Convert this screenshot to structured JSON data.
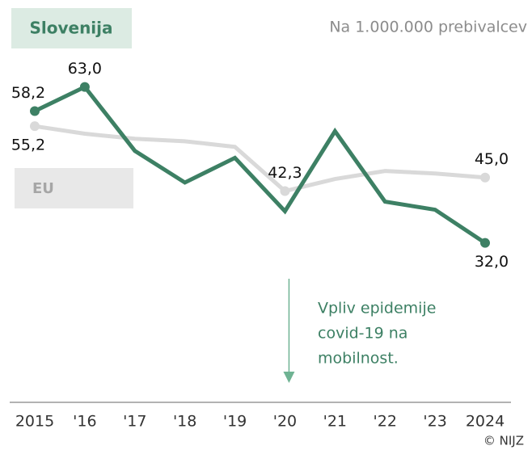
{
  "chart_data": {
    "type": "line",
    "subtitle": "Na 1.000.000 prebivalcev",
    "categories": [
      "2015",
      "'16",
      "'17",
      "'18",
      "'19",
      "'20",
      "'21",
      "'22",
      "'23",
      "2024"
    ],
    "series": [
      {
        "name": "Slovenija",
        "color": "#3d8064",
        "values": [
          58.2,
          63.0,
          50.3,
          44.0,
          48.9,
          38.3,
          54.2,
          40.2,
          38.6,
          32.0
        ],
        "value_labels": [
          "58,2",
          "63,0",
          null,
          null,
          null,
          null,
          null,
          null,
          null,
          "32,0"
        ]
      },
      {
        "name": "EU",
        "color": "#d9d9d9",
        "values": [
          55.2,
          53.7,
          52.7,
          52.2,
          51.1,
          42.3,
          44.7,
          46.3,
          45.8,
          45.0
        ],
        "value_labels": [
          "55,2",
          null,
          null,
          null,
          null,
          "42,3",
          null,
          null,
          null,
          "45,0"
        ]
      }
    ],
    "annotation": {
      "lines": [
        "Vpliv epidemije",
        "covid-19 na",
        "mobilnost."
      ],
      "category": "'20"
    },
    "ylim": [
      0,
      70
    ],
    "source": "© NIJZ"
  }
}
